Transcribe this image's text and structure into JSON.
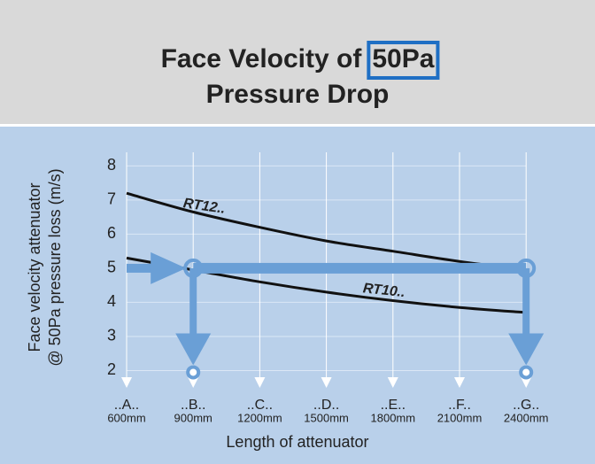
{
  "chart_data": {
    "type": "line",
    "title": [
      "Face Velocity of",
      "50Pa",
      "Pressure Drop"
    ],
    "x_label": "Length of attenuator",
    "y_label": [
      "Face velocity attenuator",
      "@ 50Pa pressure loss (m/s)"
    ],
    "categories": [
      "..A..",
      "..B..",
      "..C..",
      "..D..",
      "..E..",
      "..F..",
      "..G.."
    ],
    "category_sublabels": [
      "600mm",
      "900mm",
      "1200mm",
      "1500mm",
      "1800mm",
      "2100mm",
      "2400mm"
    ],
    "series": [
      {
        "name": "RT12..",
        "color": "#111111",
        "values": [
          7.2,
          6.65,
          6.2,
          5.8,
          5.5,
          5.2,
          4.95
        ]
      },
      {
        "name": "RT10..",
        "color": "#111111",
        "values": [
          5.3,
          4.95,
          4.6,
          4.3,
          4.05,
          3.85,
          3.7
        ]
      }
    ],
    "readout_value": 5,
    "readout_color": "#6a9fd6",
    "ylim": [
      1.7,
      8.4
    ],
    "yticks": [
      2,
      3,
      4,
      5,
      6,
      7,
      8
    ],
    "grid": true
  }
}
